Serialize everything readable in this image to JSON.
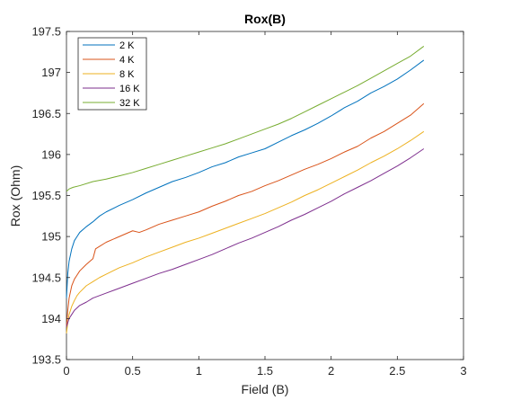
{
  "chart_data": {
    "type": "line",
    "title": "Rox(B)",
    "xlabel": "Field (B)",
    "ylabel": "Rox (Ohm)",
    "xlim": [
      0,
      3
    ],
    "ylim": [
      193.5,
      197.5
    ],
    "xticks": [
      0,
      0.5,
      1,
      1.5,
      2,
      2.5,
      3
    ],
    "xtick_labels": [
      "0",
      "0.5",
      "1",
      "1.5",
      "2",
      "2.5",
      "3"
    ],
    "yticks": [
      193.5,
      194,
      194.5,
      195,
      195.5,
      196,
      196.5,
      197,
      197.5
    ],
    "ytick_labels": [
      "193.5",
      "194",
      "194.5",
      "195",
      "195.5",
      "196",
      "196.5",
      "197",
      "197.5"
    ],
    "grid": false,
    "legend_position": "top-left",
    "series": [
      {
        "name": "2 K",
        "color": "#0072bd",
        "x": [
          0.0,
          0.01,
          0.02,
          0.04,
          0.06,
          0.08,
          0.1,
          0.15,
          0.2,
          0.25,
          0.3,
          0.4,
          0.5,
          0.6,
          0.7,
          0.8,
          0.9,
          1.0,
          1.1,
          1.2,
          1.3,
          1.4,
          1.5,
          1.6,
          1.7,
          1.8,
          1.9,
          2.0,
          2.1,
          2.2,
          2.3,
          2.4,
          2.5,
          2.6,
          2.7
        ],
        "values": [
          194.25,
          194.55,
          194.7,
          194.85,
          194.95,
          195.0,
          195.05,
          195.12,
          195.18,
          195.25,
          195.3,
          195.38,
          195.45,
          195.53,
          195.6,
          195.67,
          195.72,
          195.78,
          195.85,
          195.9,
          195.97,
          196.02,
          196.07,
          196.15,
          196.23,
          196.3,
          196.38,
          196.47,
          196.57,
          196.65,
          196.75,
          196.83,
          196.92,
          197.03,
          197.15
        ]
      },
      {
        "name": "4 K",
        "color": "#d95319",
        "x": [
          0.0,
          0.01,
          0.02,
          0.04,
          0.06,
          0.08,
          0.1,
          0.15,
          0.2,
          0.22,
          0.25,
          0.3,
          0.4,
          0.5,
          0.55,
          0.6,
          0.7,
          0.8,
          0.9,
          1.0,
          1.1,
          1.2,
          1.3,
          1.4,
          1.5,
          1.6,
          1.7,
          1.8,
          1.9,
          2.0,
          2.1,
          2.2,
          2.3,
          2.4,
          2.5,
          2.6,
          2.7
        ],
        "values": [
          193.9,
          194.1,
          194.25,
          194.4,
          194.48,
          194.53,
          194.58,
          194.66,
          194.73,
          194.85,
          194.88,
          194.93,
          195.0,
          195.07,
          195.05,
          195.08,
          195.15,
          195.2,
          195.25,
          195.3,
          195.37,
          195.43,
          195.5,
          195.55,
          195.62,
          195.68,
          195.75,
          195.82,
          195.88,
          195.95,
          196.03,
          196.1,
          196.2,
          196.28,
          196.38,
          196.48,
          196.62
        ]
      },
      {
        "name": "8 K",
        "color": "#edb120",
        "x": [
          0.0,
          0.01,
          0.02,
          0.04,
          0.06,
          0.08,
          0.1,
          0.15,
          0.2,
          0.25,
          0.3,
          0.4,
          0.5,
          0.6,
          0.7,
          0.8,
          0.9,
          1.0,
          1.1,
          1.2,
          1.3,
          1.4,
          1.5,
          1.6,
          1.7,
          1.8,
          1.9,
          2.0,
          2.1,
          2.2,
          2.3,
          2.4,
          2.5,
          2.6,
          2.7
        ],
        "values": [
          193.82,
          193.95,
          194.05,
          194.15,
          194.22,
          194.28,
          194.32,
          194.4,
          194.45,
          194.5,
          194.54,
          194.62,
          194.68,
          194.75,
          194.81,
          194.87,
          194.93,
          194.98,
          195.04,
          195.1,
          195.16,
          195.22,
          195.28,
          195.35,
          195.42,
          195.5,
          195.57,
          195.65,
          195.73,
          195.81,
          195.9,
          195.98,
          196.07,
          196.17,
          196.28
        ]
      },
      {
        "name": "16 K",
        "color": "#7e2f8e",
        "x": [
          0.0,
          0.01,
          0.02,
          0.04,
          0.06,
          0.08,
          0.1,
          0.15,
          0.2,
          0.25,
          0.3,
          0.4,
          0.5,
          0.6,
          0.7,
          0.8,
          0.9,
          1.0,
          1.1,
          1.2,
          1.3,
          1.4,
          1.5,
          1.6,
          1.7,
          1.8,
          1.9,
          2.0,
          2.1,
          2.2,
          2.3,
          2.4,
          2.5,
          2.6,
          2.7
        ],
        "values": [
          193.9,
          193.95,
          194.0,
          194.05,
          194.1,
          194.13,
          194.16,
          194.2,
          194.25,
          194.28,
          194.31,
          194.37,
          194.43,
          194.49,
          194.55,
          194.6,
          194.66,
          194.72,
          194.78,
          194.85,
          194.92,
          194.98,
          195.05,
          195.12,
          195.2,
          195.27,
          195.35,
          195.43,
          195.52,
          195.6,
          195.68,
          195.77,
          195.86,
          195.96,
          196.07
        ]
      },
      {
        "name": "32 K",
        "color": "#77ac30",
        "x": [
          0.0,
          0.02,
          0.05,
          0.1,
          0.2,
          0.3,
          0.4,
          0.5,
          0.6,
          0.7,
          0.8,
          0.9,
          1.0,
          1.1,
          1.2,
          1.3,
          1.4,
          1.5,
          1.6,
          1.7,
          1.8,
          1.9,
          2.0,
          2.1,
          2.2,
          2.3,
          2.4,
          2.5,
          2.6,
          2.7
        ],
        "values": [
          195.55,
          195.58,
          195.6,
          195.62,
          195.67,
          195.7,
          195.74,
          195.78,
          195.83,
          195.88,
          195.93,
          195.98,
          196.03,
          196.08,
          196.13,
          196.19,
          196.25,
          196.31,
          196.37,
          196.44,
          196.52,
          196.6,
          196.68,
          196.76,
          196.84,
          196.93,
          197.02,
          197.11,
          197.2,
          197.32
        ]
      }
    ]
  }
}
